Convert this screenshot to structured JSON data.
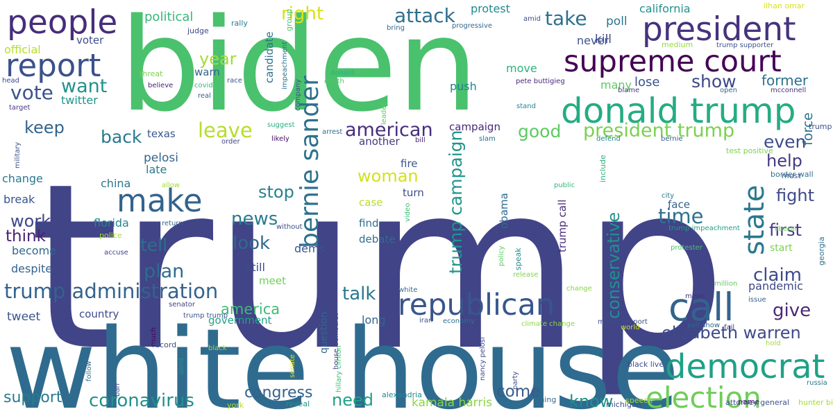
{
  "words": [
    {
      "text": "trump",
      "color": "#414487"
    },
    {
      "text": "biden",
      "color": "#4ac16d"
    },
    {
      "text": "white house",
      "color": "#2f6b8e"
    },
    {
      "text": "president",
      "color": "#46337e"
    },
    {
      "text": "people",
      "color": "#472d7b"
    },
    {
      "text": "supreme court",
      "color": "#440154"
    },
    {
      "text": "donald trump",
      "color": "#25ac82"
    },
    {
      "text": "report",
      "color": "#3b518b"
    },
    {
      "text": "bernie sander",
      "color": "#2c718e"
    },
    {
      "text": "republican",
      "color": "#39568c"
    },
    {
      "text": "democrat",
      "color": "#1fa187"
    },
    {
      "text": "election",
      "color": "#6ece58"
    },
    {
      "text": "make",
      "color": "#33638d"
    },
    {
      "text": "call",
      "color": "#33638d"
    },
    {
      "text": "state",
      "color": "#2a788e"
    },
    {
      "text": "trump administration",
      "color": "#33638d"
    },
    {
      "text": "president trump",
      "color": "#7ad151"
    },
    {
      "text": "american",
      "color": "#472d7b"
    },
    {
      "text": "trump campaign",
      "color": "#1f968b"
    },
    {
      "text": "elizabeth warren",
      "color": "#3e4a89"
    },
    {
      "text": "coronavirus",
      "color": "#21918c"
    },
    {
      "text": "conservative",
      "color": "#21918c"
    },
    {
      "text": "attack",
      "color": "#2e6f8e"
    },
    {
      "text": "take",
      "color": "#2d708e"
    },
    {
      "text": "vote",
      "color": "#3b528b"
    },
    {
      "text": "want",
      "color": "#21918c"
    },
    {
      "text": "leave",
      "color": "#b5de2b"
    },
    {
      "text": "good",
      "color": "#5ec962"
    },
    {
      "text": "even",
      "color": "#3e4c8a"
    },
    {
      "text": "show",
      "color": "#3f4788"
    },
    {
      "text": "right",
      "color": "#d8e219"
    },
    {
      "text": "year",
      "color": "#a5db36"
    },
    {
      "text": "back",
      "color": "#2a788e"
    },
    {
      "text": "keep",
      "color": "#33638d"
    },
    {
      "text": "news",
      "color": "#287d8e"
    },
    {
      "text": "time",
      "color": "#2c728e"
    },
    {
      "text": "claim",
      "color": "#3e4989"
    },
    {
      "text": "give",
      "color": "#482878"
    },
    {
      "text": "talk",
      "color": "#2a788e"
    },
    {
      "text": "fight",
      "color": "#3e4a89"
    },
    {
      "text": "first",
      "color": "#453781"
    },
    {
      "text": "help",
      "color": "#443a83"
    },
    {
      "text": "work",
      "color": "#3f4788"
    },
    {
      "text": "think",
      "color": "#482173"
    },
    {
      "text": "plan",
      "color": "#2f6c8e"
    },
    {
      "text": "look",
      "color": "#31688e"
    },
    {
      "text": "tell",
      "color": "#2e6e8e"
    },
    {
      "text": "stop",
      "color": "#26818e"
    },
    {
      "text": "woman",
      "color": "#d2e21b"
    },
    {
      "text": "need",
      "color": "#1fa187"
    },
    {
      "text": "come",
      "color": "#375a8c"
    },
    {
      "text": "know",
      "color": "#20928c"
    },
    {
      "text": "support",
      "color": "#287c8e"
    },
    {
      "text": "congress",
      "color": "#33638d"
    },
    {
      "text": "america",
      "color": "#3bbb75"
    },
    {
      "text": "former",
      "color": "#2d718e"
    },
    {
      "text": "force",
      "color": "#2c728e"
    },
    {
      "text": "kamala harris",
      "color": "#89d548"
    },
    {
      "text": "pandemic",
      "color": "#3e4989"
    },
    {
      "text": "tweet",
      "color": "#39568c"
    },
    {
      "text": "twitter",
      "color": "#1f958b"
    },
    {
      "text": "political",
      "color": "#37b878"
    },
    {
      "text": "protest",
      "color": "#23898e"
    },
    {
      "text": "california",
      "color": "#21908d"
    },
    {
      "text": "poll",
      "color": "#2b748e"
    },
    {
      "text": "lose",
      "color": "#3a548c"
    },
    {
      "text": "kill",
      "color": "#3f4889"
    },
    {
      "text": "never",
      "color": "#3b528b"
    },
    {
      "text": "many",
      "color": "#5ec962"
    },
    {
      "text": "push",
      "color": "#25848e"
    },
    {
      "text": "move",
      "color": "#2db27d"
    },
    {
      "text": "official",
      "color": "#b5de2b"
    },
    {
      "text": "voter",
      "color": "#3d4d8a"
    },
    {
      "text": "warn",
      "color": "#33638d"
    },
    {
      "text": "change",
      "color": "#2a788e"
    },
    {
      "text": "break",
      "color": "#3a538b"
    },
    {
      "text": "become",
      "color": "#31678e"
    },
    {
      "text": "despite",
      "color": "#33638d"
    },
    {
      "text": "pelosi",
      "color": "#32658e"
    },
    {
      "text": "late",
      "color": "#287d8e"
    },
    {
      "text": "china",
      "color": "#2a788e"
    },
    {
      "text": "florida",
      "color": "#25848e"
    },
    {
      "text": "texas",
      "color": "#38588c"
    },
    {
      "text": "candidate",
      "color": "#2c728e"
    },
    {
      "text": "fire",
      "color": "#38588c"
    },
    {
      "text": "turn",
      "color": "#3e4c8a"
    },
    {
      "text": "case",
      "color": "#b8de29"
    },
    {
      "text": "find",
      "color": "#2e6e8e"
    },
    {
      "text": "debate",
      "color": "#2e6e8e"
    },
    {
      "text": "another",
      "color": "#453781"
    },
    {
      "text": "campaign",
      "color": "#482677"
    },
    {
      "text": "obama",
      "color": "#2f6c8e"
    },
    {
      "text": "trump call",
      "color": "#472c7a"
    },
    {
      "text": "dems",
      "color": "#39558c"
    },
    {
      "text": "still",
      "color": "#3e4c8a"
    },
    {
      "text": "meet",
      "color": "#6ece58"
    },
    {
      "text": "government",
      "color": "#20a386"
    },
    {
      "text": "country",
      "color": "#3e4a89"
    },
    {
      "text": "long",
      "color": "#32648e"
    },
    {
      "text": "question",
      "color": "#31688e"
    },
    {
      "text": "face",
      "color": "#34618d"
    },
    {
      "text": "start",
      "color": "#7ad151"
    },
    {
      "text": "judge",
      "color": "#404588"
    },
    {
      "text": "rally",
      "color": "#2a788e"
    },
    {
      "text": "group",
      "color": "#50c46a"
    },
    {
      "text": "bring",
      "color": "#31688e"
    },
    {
      "text": "progressive",
      "color": "#31688e"
    },
    {
      "text": "amid",
      "color": "#3d4e8a"
    },
    {
      "text": "trump supporter",
      "color": "#3b528b"
    },
    {
      "text": "ilhan omar",
      "color": "#d8e219"
    },
    {
      "text": "medium",
      "color": "#95d840"
    },
    {
      "text": "impeachment",
      "color": "#2d718e"
    },
    {
      "text": "threat",
      "color": "#7ad151"
    },
    {
      "text": "believe",
      "color": "#482475"
    },
    {
      "text": "covid",
      "color": "#35b779"
    },
    {
      "text": "race",
      "color": "#3b528b"
    },
    {
      "text": "real",
      "color": "#33638d"
    },
    {
      "text": "donald",
      "color": "#2db27d"
    },
    {
      "text": "death",
      "color": "#54c568"
    },
    {
      "text": "company",
      "color": "#3b528b"
    },
    {
      "text": "leader",
      "color": "#5ec962"
    },
    {
      "text": "pete buttigieg",
      "color": "#482878"
    },
    {
      "text": "stand",
      "color": "#25858e"
    },
    {
      "text": "blame",
      "color": "#443983"
    },
    {
      "text": "open",
      "color": "#31688e"
    },
    {
      "text": "mcconnell",
      "color": "#46327e"
    },
    {
      "text": "trump want",
      "color": "#3b528b"
    },
    {
      "text": "head",
      "color": "#3e4989"
    },
    {
      "text": "target",
      "color": "#453882"
    },
    {
      "text": "suggest",
      "color": "#29af7f"
    },
    {
      "text": "order",
      "color": "#404588"
    },
    {
      "text": "likely",
      "color": "#470d60"
    },
    {
      "text": "arrest",
      "color": "#2e6f8e"
    },
    {
      "text": "bill",
      "color": "#482475"
    },
    {
      "text": "slam",
      "color": "#2e6e8e"
    },
    {
      "text": "defend",
      "color": "#25858e"
    },
    {
      "text": "bernie",
      "color": "#355f8d"
    },
    {
      "text": "test positive",
      "color": "#7ad151"
    },
    {
      "text": "military",
      "color": "#3b528b"
    },
    {
      "text": "allow",
      "color": "#9fda3a"
    },
    {
      "text": "include",
      "color": "#2db27d"
    },
    {
      "text": "public",
      "color": "#37b878"
    },
    {
      "text": "city",
      "color": "#2a788e"
    },
    {
      "text": "border wall",
      "color": "#2c728e"
    },
    {
      "text": "must",
      "color": "#3b528b"
    },
    {
      "text": "return",
      "color": "#31688e"
    },
    {
      "text": "without",
      "color": "#3e4c8a"
    },
    {
      "text": "video",
      "color": "#3dbc74"
    },
    {
      "text": "speak",
      "color": "#238a8d"
    },
    {
      "text": "trump impeachment",
      "color": "#1f9e89"
    },
    {
      "text": "liberal",
      "color": "#6ece58"
    },
    {
      "text": "protester",
      "color": "#4ac16d"
    },
    {
      "text": "georgia",
      "color": "#2d708e"
    },
    {
      "text": "police",
      "color": "#a8db34"
    },
    {
      "text": "accuse",
      "color": "#3f4788"
    },
    {
      "text": "policy",
      "color": "#5ec962"
    },
    {
      "text": "release",
      "color": "#7fd34e"
    },
    {
      "text": "change",
      "color": "#86d549"
    },
    {
      "text": "million",
      "color": "#5ec962"
    },
    {
      "text": "issue",
      "color": "#33638d"
    },
    {
      "text": "mean",
      "color": "#46307e"
    },
    {
      "text": "white",
      "color": "#31688e"
    },
    {
      "text": "much",
      "color": "#440154"
    },
    {
      "text": "senator",
      "color": "#424086"
    },
    {
      "text": "trump trump",
      "color": "#3b528b"
    },
    {
      "text": "barr",
      "color": "#3e4c8a"
    },
    {
      "text": "hillary clinton",
      "color": "#3bbb75"
    },
    {
      "text": "house democrat",
      "color": "#404588"
    },
    {
      "text": "iran",
      "color": "#3b528b"
    },
    {
      "text": "economy",
      "color": "#2d708e"
    },
    {
      "text": "nancy pelosi",
      "color": "#3f4889"
    },
    {
      "text": "party",
      "color": "#3d4e8a"
    },
    {
      "text": "climate change",
      "color": "#8bd646"
    },
    {
      "text": "mueller report",
      "color": "#3e4c8a"
    },
    {
      "text": "world",
      "color": "#c5e021"
    },
    {
      "text": "poll show",
      "color": "#32658e"
    },
    {
      "text": "fail",
      "color": "#424086"
    },
    {
      "text": "hold",
      "color": "#a2da37"
    },
    {
      "text": "record",
      "color": "#3e4c8a"
    },
    {
      "text": "black",
      "color": "#90d743"
    },
    {
      "text": "follow",
      "color": "#2e6e8e"
    },
    {
      "text": "send",
      "color": "#21908d"
    },
    {
      "text": "senate",
      "color": "#e2e418"
    },
    {
      "text": "black live",
      "color": "#3e4c8a"
    },
    {
      "text": "speech",
      "color": "#a0da39"
    },
    {
      "text": "russia",
      "color": "#2a788e"
    },
    {
      "text": "york",
      "color": "#b8de29"
    },
    {
      "text": "reveal",
      "color": "#21918c"
    },
    {
      "text": "alexandria",
      "color": "#24878e"
    },
    {
      "text": "thing",
      "color": "#2e6e8e"
    },
    {
      "text": "rule",
      "color": "#2d708e"
    },
    {
      "text": "michigan",
      "color": "#3e4c8a"
    },
    {
      "text": "attorney general",
      "color": "#3b528b"
    },
    {
      "text": "name",
      "color": "#482475"
    },
    {
      "text": "hunter biden",
      "color": "#a5db36"
    },
    {
      "text": "demand",
      "color": "#3e4989"
    }
  ]
}
